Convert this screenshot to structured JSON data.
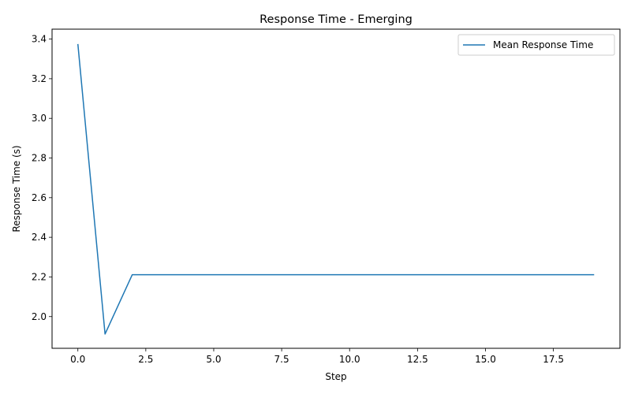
{
  "chart_data": {
    "type": "line",
    "title": "Response Time - Emerging",
    "xlabel": "Step",
    "ylabel": "Response Time (s)",
    "xlim": [
      -0.95,
      19.95
    ],
    "ylim": [
      1.84,
      3.45
    ],
    "xticks": [
      0.0,
      2.5,
      5.0,
      7.5,
      10.0,
      12.5,
      15.0,
      17.5
    ],
    "xtick_labels": [
      "0.0",
      "2.5",
      "5.0",
      "7.5",
      "10.0",
      "12.5",
      "15.0",
      "17.5"
    ],
    "yticks": [
      2.0,
      2.2,
      2.4,
      2.6,
      2.8,
      3.0,
      3.2,
      3.4
    ],
    "ytick_labels": [
      "2.0",
      "2.2",
      "2.4",
      "2.6",
      "2.8",
      "3.0",
      "3.2",
      "3.4"
    ],
    "grid": false,
    "legend_position": "top-right",
    "series": [
      {
        "name": "Mean Response Time",
        "color": "#1f77b4",
        "x": [
          0,
          1,
          2,
          3,
          4,
          5,
          6,
          7,
          8,
          9,
          10,
          11,
          12,
          13,
          14,
          15,
          16,
          17,
          18,
          19
        ],
        "y": [
          3.375,
          1.912,
          2.211,
          2.211,
          2.211,
          2.211,
          2.211,
          2.211,
          2.211,
          2.211,
          2.211,
          2.211,
          2.211,
          2.211,
          2.211,
          2.211,
          2.211,
          2.211,
          2.211,
          2.211
        ]
      }
    ]
  }
}
